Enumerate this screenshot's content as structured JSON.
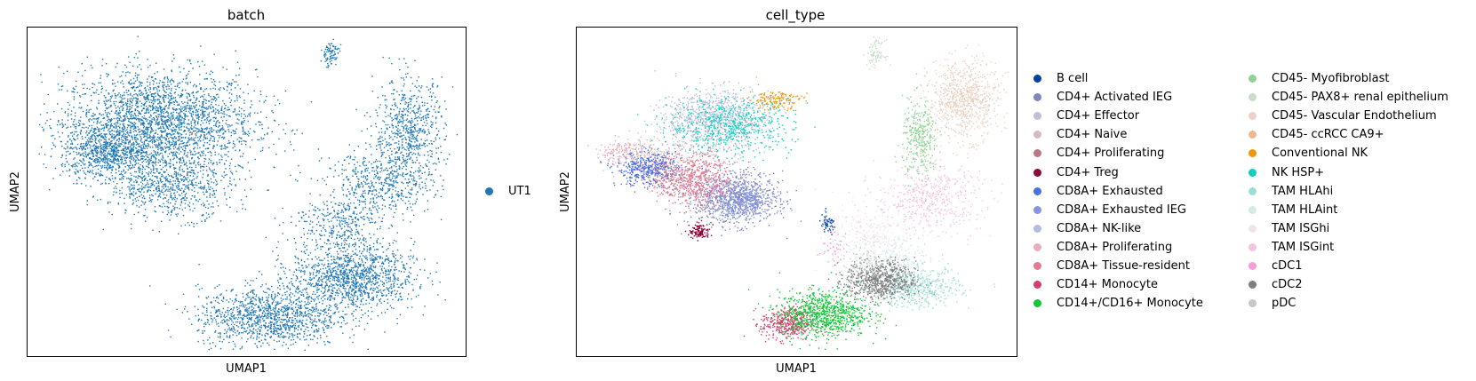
{
  "chart_data": [
    {
      "type": "scatter",
      "title": "batch",
      "xlabel": "UMAP1",
      "ylabel": "UMAP2",
      "grid": false,
      "ticks": false,
      "legend_position": "right",
      "series": [
        {
          "name": "UT1",
          "color": "#1f77b4",
          "clusters": [
            {
              "label": "left-mass",
              "cx": 0.3,
              "cy": 0.71,
              "sx": 0.11,
              "sy": 0.08,
              "n": 2600
            },
            {
              "label": "left-mass-west",
              "cx": 0.18,
              "cy": 0.62,
              "sx": 0.05,
              "sy": 0.04,
              "n": 700
            },
            {
              "label": "left-mass-south",
              "cx": 0.33,
              "cy": 0.52,
              "sx": 0.07,
              "sy": 0.05,
              "n": 700
            },
            {
              "label": "top-island",
              "cx": 0.69,
              "cy": 0.92,
              "sx": 0.01,
              "sy": 0.02,
              "n": 90
            },
            {
              "label": "right-arm-upper",
              "cx": 0.87,
              "cy": 0.68,
              "sx": 0.04,
              "sy": 0.08,
              "n": 700
            },
            {
              "label": "right-arm-middle",
              "cx": 0.8,
              "cy": 0.52,
              "sx": 0.06,
              "sy": 0.05,
              "n": 500
            },
            {
              "label": "right-arm-lower",
              "cx": 0.7,
              "cy": 0.4,
              "sx": 0.05,
              "sy": 0.04,
              "n": 300
            },
            {
              "label": "bottom-right-mass",
              "cx": 0.74,
              "cy": 0.24,
              "sx": 0.07,
              "sy": 0.05,
              "n": 1300
            },
            {
              "label": "bottom-left-mass",
              "cx": 0.55,
              "cy": 0.12,
              "sx": 0.08,
              "sy": 0.045,
              "n": 1200
            }
          ]
        }
      ]
    },
    {
      "type": "scatter",
      "title": "cell_type",
      "xlabel": "UMAP1",
      "ylabel": "UMAP2",
      "grid": false,
      "ticks": false,
      "legend_position": "right",
      "series": [
        {
          "name": "B cell",
          "color": "#023fa5",
          "cx": 0.57,
          "cy": 0.4,
          "sx": 0.01,
          "sy": 0.015,
          "n": 60
        },
        {
          "name": "CD4+ Activated IEG",
          "color": "#7d87b9",
          "cx": 0.35,
          "cy": 0.48,
          "sx": 0.05,
          "sy": 0.04,
          "n": 700
        },
        {
          "name": "CD4+ Effector",
          "color": "#bec1d4",
          "cx": 0.3,
          "cy": 0.7,
          "sx": 0.06,
          "sy": 0.05,
          "n": 500
        },
        {
          "name": "CD4+ Naive",
          "color": "#d6bcc0",
          "cx": 0.18,
          "cy": 0.6,
          "sx": 0.04,
          "sy": 0.03,
          "n": 200
        },
        {
          "name": "CD4+ Proliferating",
          "color": "#bb7784",
          "cx": 0.2,
          "cy": 0.55,
          "sx": 0.03,
          "sy": 0.03,
          "n": 120
        },
        {
          "name": "CD4+ Treg",
          "color": "#8e063b",
          "cx": 0.28,
          "cy": 0.38,
          "sx": 0.012,
          "sy": 0.012,
          "n": 120
        },
        {
          "name": "CD8A+ Exhausted",
          "color": "#4a6fe3",
          "cx": 0.16,
          "cy": 0.57,
          "sx": 0.035,
          "sy": 0.025,
          "n": 400
        },
        {
          "name": "CD8A+ Exhausted IEG",
          "color": "#8595e1",
          "cx": 0.38,
          "cy": 0.48,
          "sx": 0.04,
          "sy": 0.03,
          "n": 500
        },
        {
          "name": "CD8A+ NK-like",
          "color": "#b5bbe3",
          "cx": 0.32,
          "cy": 0.74,
          "sx": 0.06,
          "sy": 0.04,
          "n": 400
        },
        {
          "name": "CD8A+ Proliferating",
          "color": "#e6afb9",
          "cx": 0.1,
          "cy": 0.62,
          "sx": 0.03,
          "sy": 0.02,
          "n": 150
        },
        {
          "name": "CD8A+ Tissue-resident",
          "color": "#e07b91",
          "cx": 0.27,
          "cy": 0.54,
          "sx": 0.04,
          "sy": 0.04,
          "n": 600
        },
        {
          "name": "CD14+ Monocyte",
          "color": "#d33f6a",
          "cx": 0.48,
          "cy": 0.1,
          "sx": 0.03,
          "sy": 0.025,
          "n": 400
        },
        {
          "name": "CD14+/CD16+ Monocyte",
          "color": "#11c638",
          "cx": 0.56,
          "cy": 0.13,
          "sx": 0.05,
          "sy": 0.035,
          "n": 900
        },
        {
          "name": "CD45- Myofibroblast",
          "color": "#8dd593",
          "cx": 0.78,
          "cy": 0.66,
          "sx": 0.02,
          "sy": 0.06,
          "n": 350
        },
        {
          "name": "CD45- PAX8+ renal epithelium",
          "color": "#c6dec7",
          "cx": 0.68,
          "cy": 0.92,
          "sx": 0.01,
          "sy": 0.02,
          "n": 80
        },
        {
          "name": "CD45- Vascular Endothelium",
          "color": "#ead3c6",
          "cx": 0.88,
          "cy": 0.78,
          "sx": 0.04,
          "sy": 0.06,
          "n": 800
        },
        {
          "name": "CD45- ccRCC CA9+",
          "color": "#f0b98d",
          "cx": 0.88,
          "cy": 0.78,
          "sx": 0.02,
          "sy": 0.02,
          "n": 20
        },
        {
          "name": "Conventional NK",
          "color": "#ef9708",
          "cx": 0.45,
          "cy": 0.78,
          "sx": 0.03,
          "sy": 0.015,
          "n": 150
        },
        {
          "name": "NK HSP+",
          "color": "#0fcfc0",
          "cx": 0.35,
          "cy": 0.7,
          "sx": 0.07,
          "sy": 0.04,
          "n": 600
        },
        {
          "name": "TAM HLAhi",
          "color": "#9cded6",
          "cx": 0.77,
          "cy": 0.21,
          "sx": 0.05,
          "sy": 0.03,
          "n": 500
        },
        {
          "name": "TAM HLAint",
          "color": "#d5eae7",
          "cx": 0.7,
          "cy": 0.3,
          "sx": 0.05,
          "sy": 0.04,
          "n": 300
        },
        {
          "name": "TAM ISGhi",
          "color": "#f3e1eb",
          "cx": 0.66,
          "cy": 0.38,
          "sx": 0.05,
          "sy": 0.04,
          "n": 200
        },
        {
          "name": "TAM ISGint",
          "color": "#f6c4e1",
          "cx": 0.8,
          "cy": 0.48,
          "sx": 0.06,
          "sy": 0.05,
          "n": 500
        },
        {
          "name": "cDC1",
          "color": "#f79cd4",
          "cx": 0.58,
          "cy": 0.33,
          "sx": 0.015,
          "sy": 0.02,
          "n": 40
        },
        {
          "name": "cDC2",
          "color": "#7f7f7f",
          "cx": 0.69,
          "cy": 0.23,
          "sx": 0.04,
          "sy": 0.03,
          "n": 700
        },
        {
          "name": "pDC",
          "color": "#c7c7c7",
          "cx": 0.66,
          "cy": 0.28,
          "sx": 0.03,
          "sy": 0.03,
          "n": 80
        }
      ]
    }
  ]
}
